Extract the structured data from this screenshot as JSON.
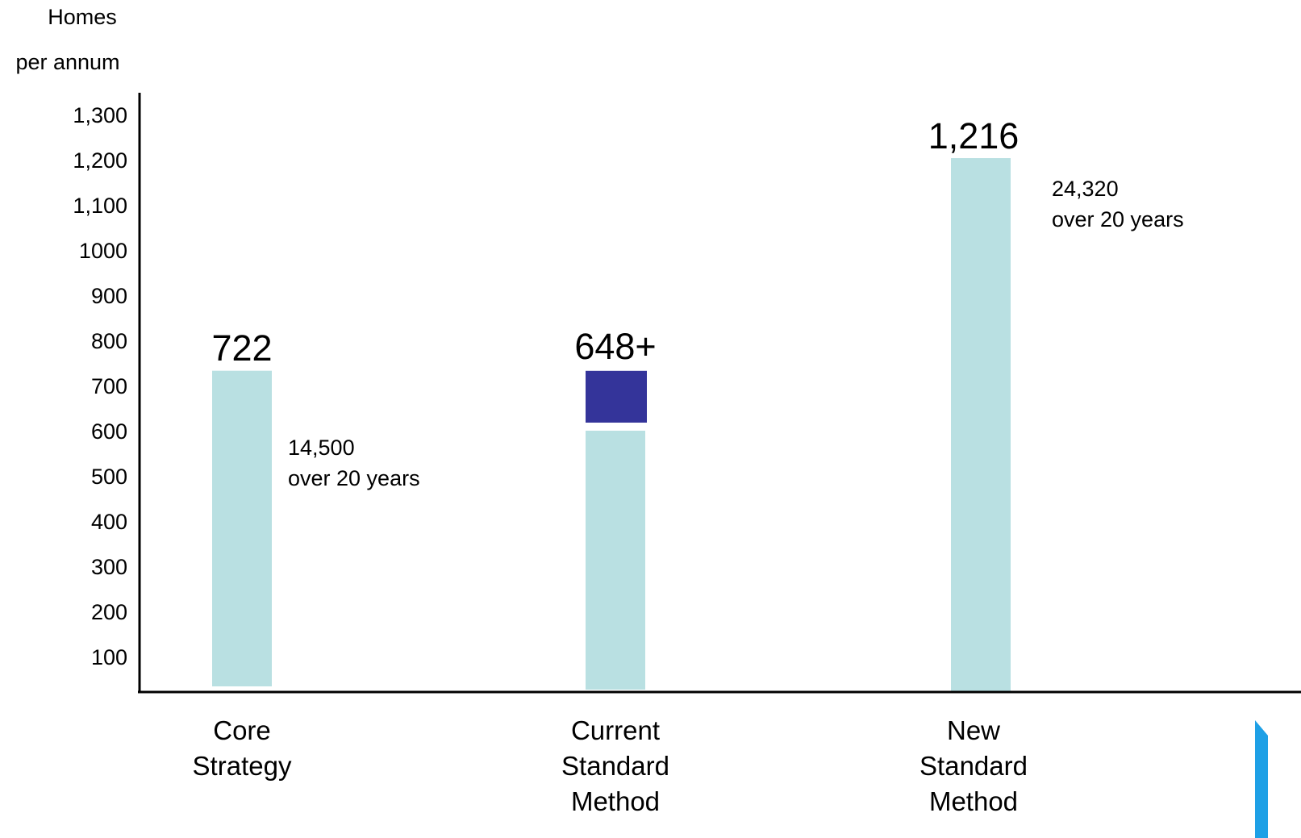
{
  "chart_data": {
    "type": "bar",
    "ylabel": [
      "Homes",
      "per annum"
    ],
    "yticks": [
      {
        "value": 100,
        "label": "100"
      },
      {
        "value": 200,
        "label": "200"
      },
      {
        "value": 300,
        "label": "300"
      },
      {
        "value": 400,
        "label": "400"
      },
      {
        "value": 500,
        "label": "500"
      },
      {
        "value": 600,
        "label": "600"
      },
      {
        "value": 700,
        "label": "700"
      },
      {
        "value": 800,
        "label": "800"
      },
      {
        "value": 900,
        "label": "900"
      },
      {
        "value": 1000,
        "label": "1000"
      },
      {
        "value": 1100,
        "label": "1,100"
      },
      {
        "value": 1200,
        "label": "1,200"
      },
      {
        "value": 1300,
        "label": "1,300"
      }
    ],
    "ylim": [
      0,
      1400
    ],
    "categories": [
      {
        "id": "core",
        "label": [
          "Core",
          "Strategy"
        ]
      },
      {
        "id": "current",
        "label": [
          "Current",
          "Standard",
          "Method"
        ]
      },
      {
        "id": "new",
        "label": [
          "New",
          "Standard",
          "Method"
        ]
      }
    ],
    "series": [
      {
        "values": [
          722,
          600,
          1216
        ],
        "color": "#b9e0e2"
      },
      {
        "values": [
          0,
          120,
          0
        ],
        "color": "#34349a"
      }
    ],
    "data_labels": [
      "722",
      "648+",
      "1,216"
    ],
    "annotations": [
      {
        "category": "core",
        "lines": [
          "14,500",
          "over 20 years"
        ]
      },
      {
        "category": "new",
        "lines": [
          "24,320",
          "over 20 years"
        ]
      }
    ],
    "grid": false,
    "legend": "none"
  },
  "colors": {
    "bar_light": "#b9e0e2",
    "bar_dark": "#34349a",
    "axis": "#000000",
    "accent": "#1ea0e6"
  }
}
